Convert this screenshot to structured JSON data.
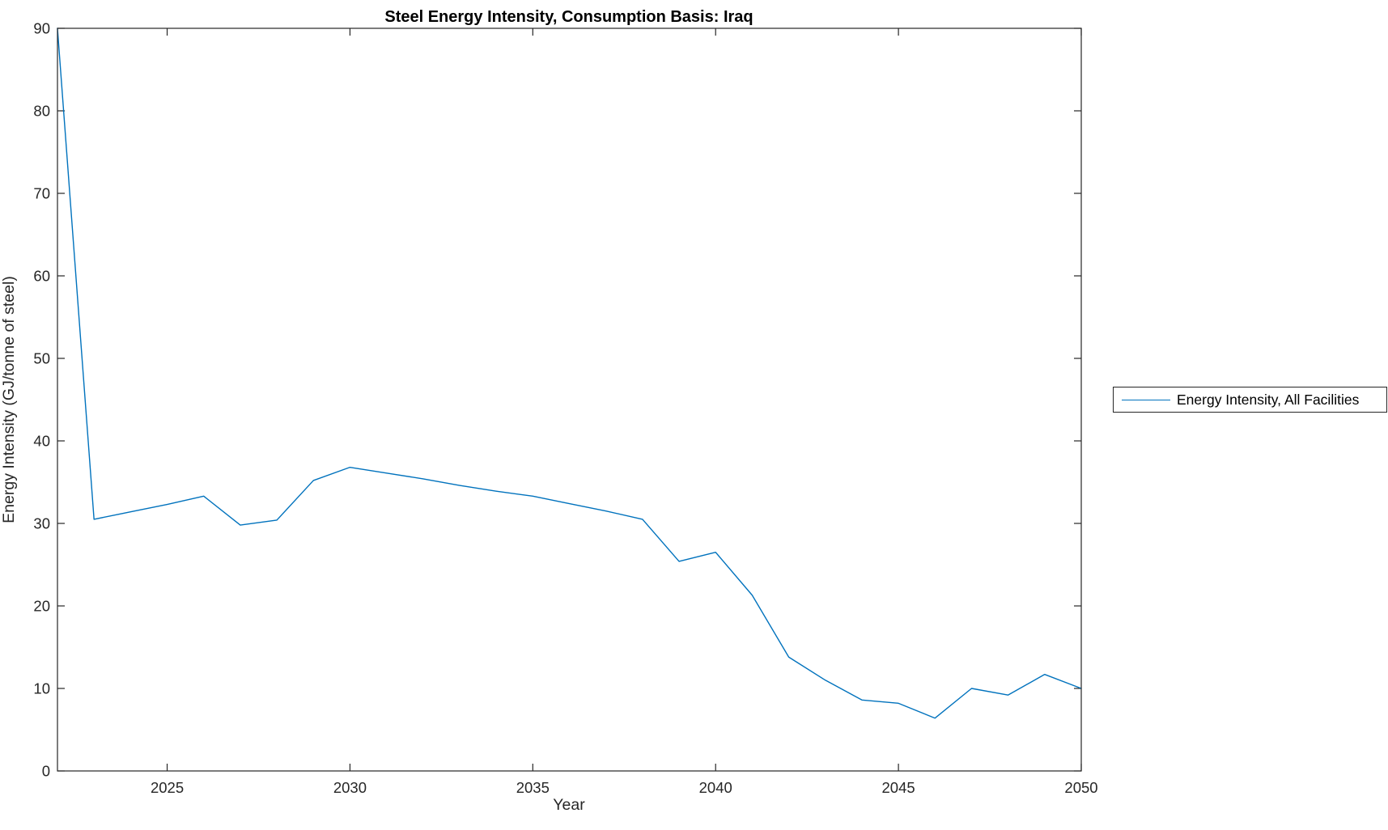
{
  "chart_data": {
    "type": "line",
    "title": "Steel Energy Intensity, Consumption Basis: Iraq",
    "xlabel": "Year",
    "ylabel": "Energy Intensity (GJ/tonne of steel)",
    "xlim": [
      2022,
      2050
    ],
    "ylim": [
      0,
      90
    ],
    "xticks": [
      2025,
      2030,
      2035,
      2040,
      2045,
      2050
    ],
    "yticks": [
      0,
      10,
      20,
      30,
      40,
      50,
      60,
      70,
      80,
      90
    ],
    "grid": false,
    "legend": {
      "position": "outside-right",
      "entries": [
        {
          "label": "Energy Intensity, All Facilities",
          "color": "#0072BD"
        }
      ]
    },
    "colors": {
      "line": "#0072BD",
      "axis": "#262626",
      "background": "#ffffff"
    },
    "series": [
      {
        "name": "Energy Intensity, All Facilities",
        "x": [
          2022,
          2023,
          2024,
          2025,
          2026,
          2027,
          2028,
          2029,
          2030,
          2031,
          2032,
          2033,
          2034,
          2035,
          2036,
          2037,
          2038,
          2039,
          2040,
          2041,
          2042,
          2043,
          2044,
          2045,
          2046,
          2047,
          2048,
          2049,
          2050
        ],
        "values": [
          90.0,
          30.5,
          31.4,
          32.3,
          33.3,
          29.8,
          30.4,
          35.2,
          36.8,
          36.1,
          35.4,
          34.6,
          33.9,
          33.3,
          32.4,
          31.5,
          30.5,
          25.4,
          26.5,
          21.3,
          13.8,
          11.0,
          8.6,
          8.2,
          6.4,
          10.0,
          9.2,
          11.7,
          10.0
        ]
      }
    ]
  }
}
